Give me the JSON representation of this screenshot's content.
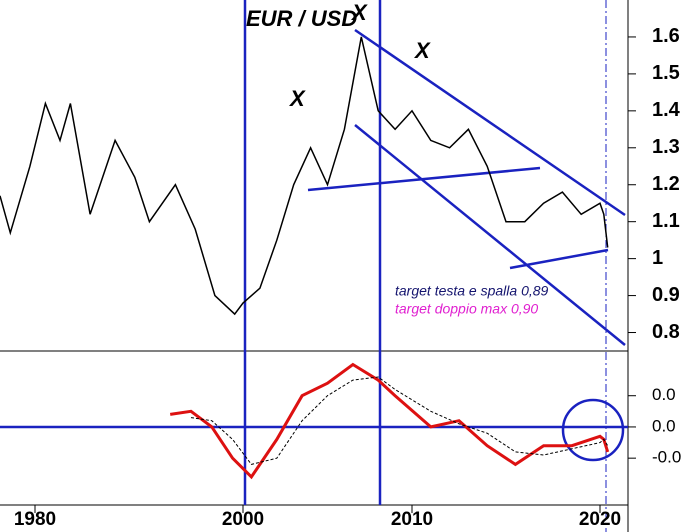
{
  "chart_data": {
    "type": "line",
    "title": "EUR / USD",
    "annotations": [
      "X",
      "X",
      "X",
      "target testa e spalla 0,89",
      "target doppio max 0,90"
    ],
    "x": [
      1976.6,
      1977.6,
      1979.5,
      1981,
      1982.4,
      1983.4,
      1985.3,
      1987.7,
      1989.6,
      1991,
      1993.5,
      1995.4,
      1997.3,
      1999.2,
      2000,
      2001,
      2002,
      2003,
      2004,
      2005,
      2006,
      2007,
      2008,
      2009,
      2010,
      2011,
      2012,
      2013,
      2014,
      2015,
      2016,
      2017,
      2018,
      2019,
      2020,
      2021,
      2022
    ],
    "series": [
      {
        "name": "EUR/USD",
        "color": "#000000",
        "values": [
          1.17,
          1.07,
          1.25,
          1.42,
          1.32,
          1.42,
          1.12,
          1.32,
          1.22,
          1.1,
          1.2,
          1.08,
          0.9,
          0.85,
          0.88,
          0.92,
          1.05,
          1.2,
          1.3,
          1.2,
          1.35,
          1.6,
          1.4,
          1.35,
          1.4,
          1.32,
          1.3,
          1.35,
          1.25,
          1.1,
          1.1,
          1.15,
          1.18,
          1.12,
          1.15,
          1.12,
          1.03
        ]
      }
    ],
    "oscillator": {
      "x": [
        1993,
        1995,
        1997,
        1999,
        2000.5,
        2002,
        2003.5,
        2005,
        2006.5,
        2008,
        2009,
        2011,
        2012.5,
        2014,
        2015.5,
        2017,
        2018.5,
        2020,
        2021,
        2022
      ],
      "series": [
        {
          "name": "osc",
          "color": "#dd1111",
          "values": [
            0.02,
            0.025,
            0,
            -0.05,
            -0.08,
            -0.02,
            0.05,
            0.07,
            0.1,
            0.075,
            0.05,
            0,
            0.01,
            -0.03,
            -0.06,
            -0.03,
            -0.03,
            -0.015,
            -0.02,
            -0.04
          ]
        },
        {
          "name": "signal",
          "color": "#000000",
          "values": [
            null,
            0.015,
            0.01,
            -0.02,
            -0.06,
            -0.05,
            0.01,
            0.05,
            0.075,
            0.08,
            0.06,
            0.025,
            0.005,
            -0.01,
            -0.04,
            -0.045,
            -0.035,
            -0.025,
            -0.02,
            -0.03
          ]
        }
      ]
    },
    "xlim": [
      1976.6,
      2022.6
    ],
    "xticks": [
      1980,
      2000,
      2010,
      2020
    ],
    "ylim": [
      0.75,
      1.7
    ],
    "yticks": [
      0.8,
      0.9,
      1.0,
      1.1,
      1.2,
      1.3,
      1.4,
      1.5,
      1.6
    ],
    "y2lim": [
      -0.125,
      0.12
    ],
    "y2ticks": [
      {
        "value": 0.05,
        "label": "0.0"
      },
      {
        "value": 0,
        "label": "0.0"
      },
      {
        "value": -0.05,
        "label": "-0.0"
      }
    ]
  }
}
